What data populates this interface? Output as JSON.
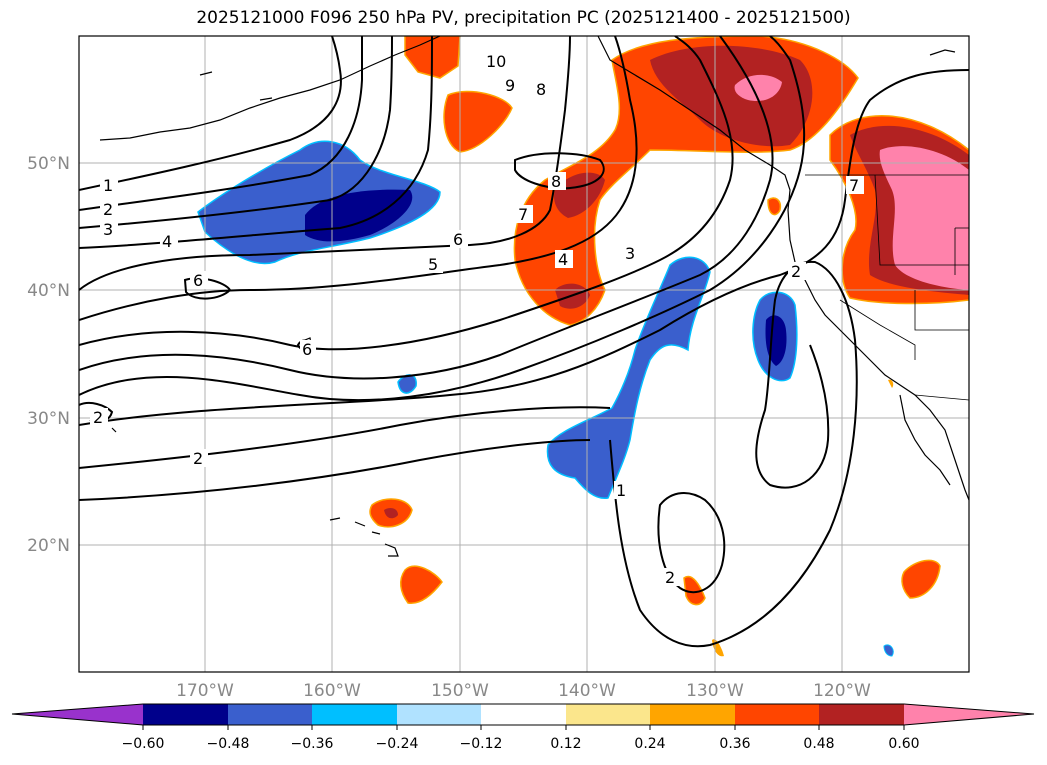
{
  "title": "2025121000 F096 250 hPa PV, precipitation PC (2025121400 - 2025121500)",
  "lat_labels": [
    "50°N",
    "40°N",
    "30°N",
    "20°N"
  ],
  "lon_labels": [
    "170°W",
    "160°W",
    "150°W",
    "140°W",
    "130°W",
    "120°W"
  ],
  "contour_labels": [
    "1",
    "2",
    "3",
    "4",
    "6",
    "6",
    "6",
    "5",
    "10",
    "9",
    "8",
    "8",
    "7",
    "4",
    "3",
    "2",
    "2",
    "2",
    "1",
    "2",
    "7"
  ],
  "colorbar": {
    "ticks": [
      "−0.60",
      "−0.48",
      "−0.36",
      "−0.24",
      "−0.12",
      "0.12",
      "0.24",
      "0.36",
      "0.48",
      "0.60"
    ],
    "colors": [
      "#9932cc",
      "#00008b",
      "#3a5fcd",
      "#00bfff",
      "#b0e2ff",
      "#ffffff",
      "#fbe68c",
      "#ffa500",
      "#ff4500",
      "#b22222",
      "#ff82ab"
    ]
  }
}
